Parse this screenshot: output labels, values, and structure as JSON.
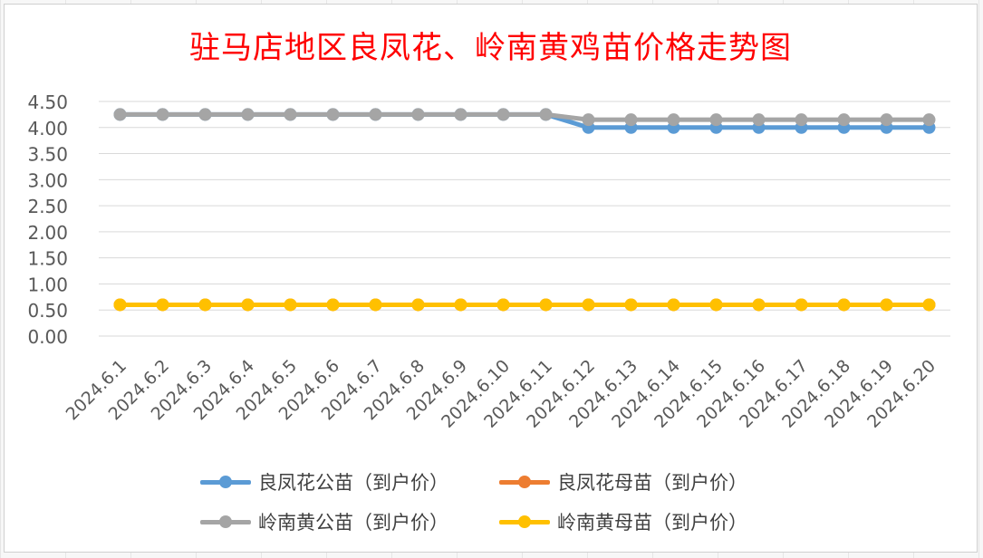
{
  "title": "驻马店地区良凤花、岭南黄鸡苗价格走势图",
  "chart_data": {
    "type": "line",
    "title": "驻马店地区良凤花、岭南黄鸡苗价格走势图",
    "xlabel": "",
    "ylabel": "",
    "ylim": [
      0,
      4.5
    ],
    "yticks": [
      "0.00",
      "0.50",
      "1.00",
      "1.50",
      "2.00",
      "2.50",
      "3.00",
      "3.50",
      "4.00",
      "4.50"
    ],
    "grid": "horizontal",
    "legend_position": "bottom",
    "categories": [
      "2024.6.1",
      "2024.6.2",
      "2024.6.3",
      "2024.6.4",
      "2024.6.5",
      "2024.6.6",
      "2024.6.7",
      "2024.6.8",
      "2024.6.9",
      "2024.6.10",
      "2024.6.11",
      "2024.6.12",
      "2024.6.13",
      "2024.6.14",
      "2024.6.15",
      "2024.6.16",
      "2024.6.17",
      "2024.6.18",
      "2024.6.19",
      "2024.6.20"
    ],
    "series": [
      {
        "name": "良凤花公苗（到户价）",
        "color": "#5b9bd5",
        "values": [
          4.25,
          4.25,
          4.25,
          4.25,
          4.25,
          4.25,
          4.25,
          4.25,
          4.25,
          4.25,
          4.25,
          4.0,
          4.0,
          4.0,
          4.0,
          4.0,
          4.0,
          4.0,
          4.0,
          4.0
        ]
      },
      {
        "name": "良凤花母苗（到户价）",
        "color": "#ed7d31",
        "values": [
          0.6,
          0.6,
          0.6,
          0.6,
          0.6,
          0.6,
          0.6,
          0.6,
          0.6,
          0.6,
          0.6,
          0.6,
          0.6,
          0.6,
          0.6,
          0.6,
          0.6,
          0.6,
          0.6,
          0.6
        ]
      },
      {
        "name": "岭南黄公苗（到户价）",
        "color": "#a5a5a5",
        "values": [
          4.25,
          4.25,
          4.25,
          4.25,
          4.25,
          4.25,
          4.25,
          4.25,
          4.25,
          4.25,
          4.25,
          4.15,
          4.15,
          4.15,
          4.15,
          4.15,
          4.15,
          4.15,
          4.15,
          4.15
        ]
      },
      {
        "name": "岭南黄母苗（到户价）",
        "color": "#ffc000",
        "values": [
          0.6,
          0.6,
          0.6,
          0.6,
          0.6,
          0.6,
          0.6,
          0.6,
          0.6,
          0.6,
          0.6,
          0.6,
          0.6,
          0.6,
          0.6,
          0.6,
          0.6,
          0.6,
          0.6,
          0.6
        ]
      }
    ]
  },
  "legend": {
    "items": [
      {
        "label": "良凤花公苗（到户价）",
        "color": "#5b9bd5"
      },
      {
        "label": "良凤花母苗（到户价）",
        "color": "#ed7d31"
      },
      {
        "label": "岭南黄公苗（到户价）",
        "color": "#a5a5a5"
      },
      {
        "label": "岭南黄母苗（到户价）",
        "color": "#ffc000"
      }
    ]
  }
}
